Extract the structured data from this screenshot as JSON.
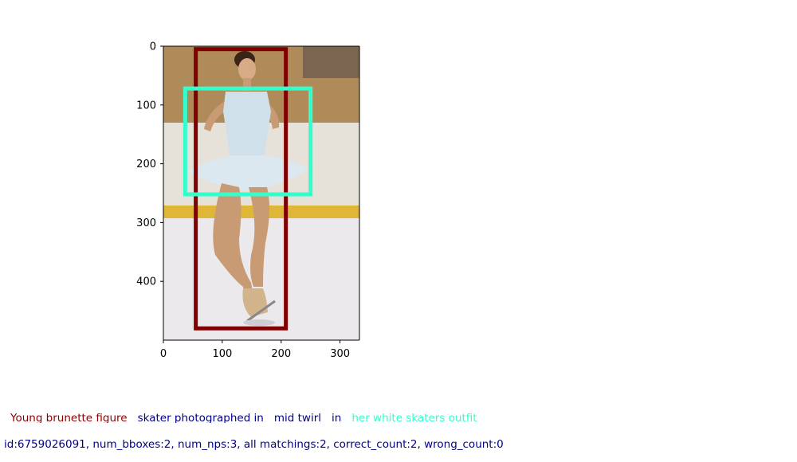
{
  "axes": {
    "x_ticks": [
      "0",
      "100",
      "200",
      "300"
    ],
    "y_ticks": [
      "0",
      "100",
      "200",
      "300",
      "400"
    ],
    "x_range": [
      0,
      333
    ],
    "y_range": [
      500,
      0
    ]
  },
  "photo": {
    "description": "figure skater in pale blue dress spinning on ice rink",
    "colors": {
      "wall": "#b08b5a",
      "board": "#e6e2da",
      "stripe": "#e0b638",
      "ice": "#ece9ec",
      "dress": "#cfe0ea",
      "skin": "#c99b74",
      "hair": "#3a2418"
    }
  },
  "boxes": [
    {
      "label": "Young brunette figure",
      "color": "#800000",
      "x0": 55,
      "y0": 5,
      "x1": 208,
      "y1": 480
    },
    {
      "label": "her white skaters outfit",
      "color": "#33ffcc",
      "x0": 37,
      "y0": 72,
      "x1": 250,
      "y1": 252
    }
  ],
  "caption": [
    {
      "text": "Young brunette figure",
      "color": "#8b0000"
    },
    {
      "text": "skater photographed in",
      "color": "#00008b"
    },
    {
      "text": "mid twirl",
      "color": "#00008b"
    },
    {
      "text": "in",
      "color": "#00008b"
    },
    {
      "text": "her white skaters outfit",
      "color": "#33ffcc"
    }
  ],
  "meta_text": "id:6759026091, num_bboxes:2, num_nps:3, all matchings:2, correct_count:2, wrong_count:0",
  "meta_color": "#00008b"
}
